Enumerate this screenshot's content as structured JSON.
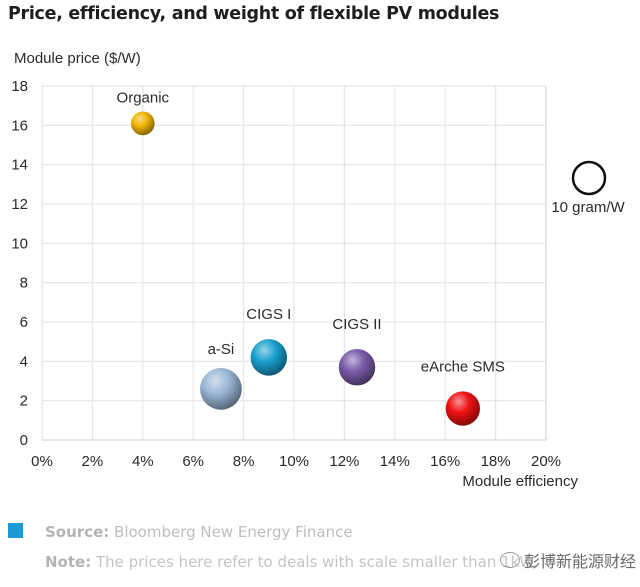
{
  "chart_data": {
    "type": "scatter",
    "subtype": "bubble",
    "title": "Price, efficiency, and weight of flexible PV modules",
    "xlabel": "Module efficiency",
    "ylabel": "Module price ($/W)",
    "xlim": [
      0,
      20
    ],
    "ylim": [
      0,
      18
    ],
    "x_ticks": [
      "0%",
      "2%",
      "4%",
      "6%",
      "8%",
      "10%",
      "12%",
      "14%",
      "16%",
      "18%",
      "20%"
    ],
    "y_ticks": [
      "0",
      "2",
      "4",
      "6",
      "8",
      "10",
      "12",
      "14",
      "16",
      "18"
    ],
    "grid": true,
    "points": [
      {
        "name": "Organic",
        "x": 4.0,
        "y": 16.1,
        "weight_g_per_w": 5.5,
        "color": "#f0b400"
      },
      {
        "name": "a-Si",
        "x": 7.1,
        "y": 2.6,
        "weight_g_per_w": 17,
        "color": "#9bb7d6"
      },
      {
        "name": "CIGS I",
        "x": 9.0,
        "y": 4.2,
        "weight_g_per_w": 13,
        "color": "#1aa0cf"
      },
      {
        "name": "CIGS II",
        "x": 12.5,
        "y": 3.7,
        "weight_g_per_w": 13,
        "color": "#7a5aa8"
      },
      {
        "name": "eArche SMS",
        "x": 16.7,
        "y": 1.6,
        "weight_g_per_w": 11.5,
        "color": "#ee1111"
      }
    ],
    "size_legend": {
      "label": "10 gram/W",
      "value_g_per_w": 10
    },
    "legend_position": "right"
  },
  "footer": {
    "source_label": "Source:",
    "source_text": "Bloomberg New Energy Finance",
    "note_label": "Note:",
    "note_text": "The prices here refer to deals with scale smaller than 1kW.",
    "accent_color": "#1a9ad6"
  },
  "watermark": {
    "text": "彭博新能源财经"
  }
}
